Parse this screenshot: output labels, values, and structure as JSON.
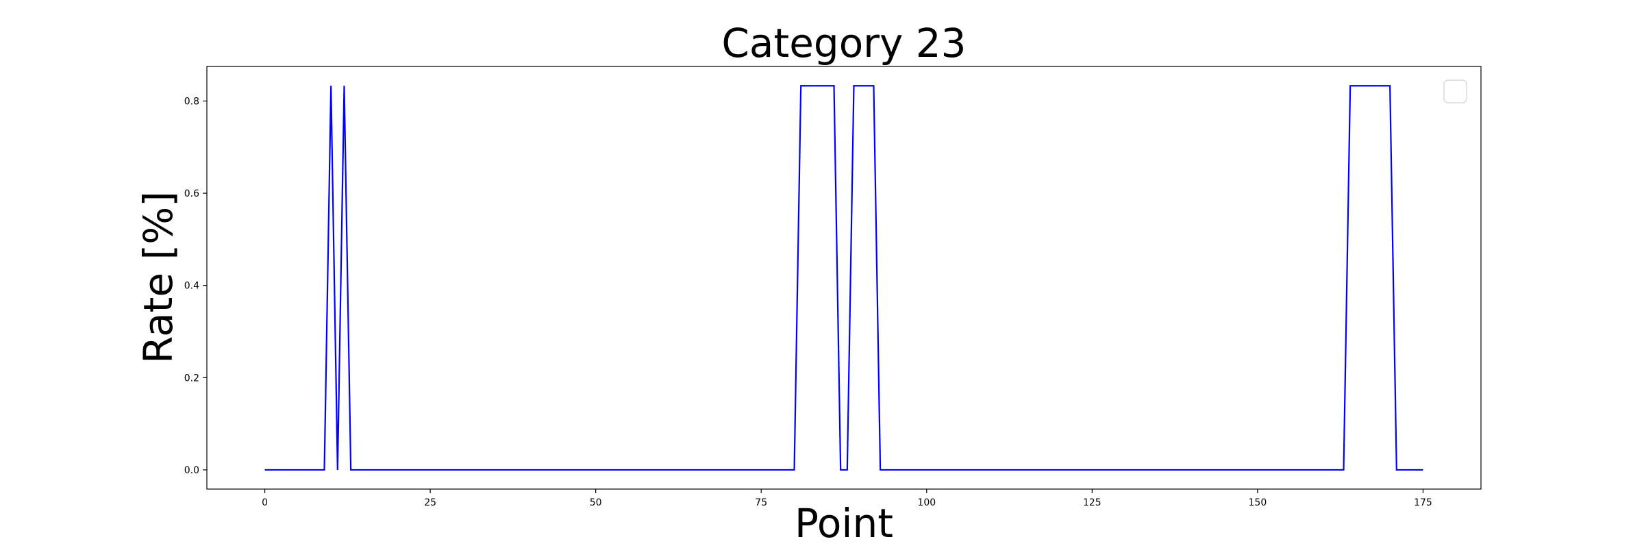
{
  "chart_data": {
    "type": "line",
    "title": "Category 23",
    "xlabel": "Point",
    "ylabel": "Rate [%]",
    "xlim": [
      -8.75,
      183.75
    ],
    "ylim": [
      -0.0417,
      0.875
    ],
    "xticks": [
      0,
      25,
      50,
      75,
      100,
      125,
      150,
      175
    ],
    "yticks": [
      0.0,
      0.2,
      0.4,
      0.6,
      0.8
    ],
    "ytick_labels": [
      "0.0",
      "0.2",
      "0.4",
      "0.6",
      "0.8"
    ],
    "grid": false,
    "legend": {
      "placement": "top-right",
      "entries": []
    },
    "series": [
      {
        "color": "#0000ff",
        "points": [
          [
            0,
            0
          ],
          [
            9,
            0
          ],
          [
            10,
            0.833
          ],
          [
            11,
            0
          ],
          [
            12,
            0.833
          ],
          [
            13,
            0
          ],
          [
            80,
            0
          ],
          [
            81,
            0.833
          ],
          [
            86,
            0.833
          ],
          [
            87,
            0
          ],
          [
            88,
            0
          ],
          [
            89,
            0.833
          ],
          [
            92,
            0.833
          ],
          [
            93,
            0
          ],
          [
            163,
            0
          ],
          [
            164,
            0.833
          ],
          [
            170,
            0.833
          ],
          [
            171,
            0
          ],
          [
            175,
            0
          ]
        ]
      }
    ]
  }
}
